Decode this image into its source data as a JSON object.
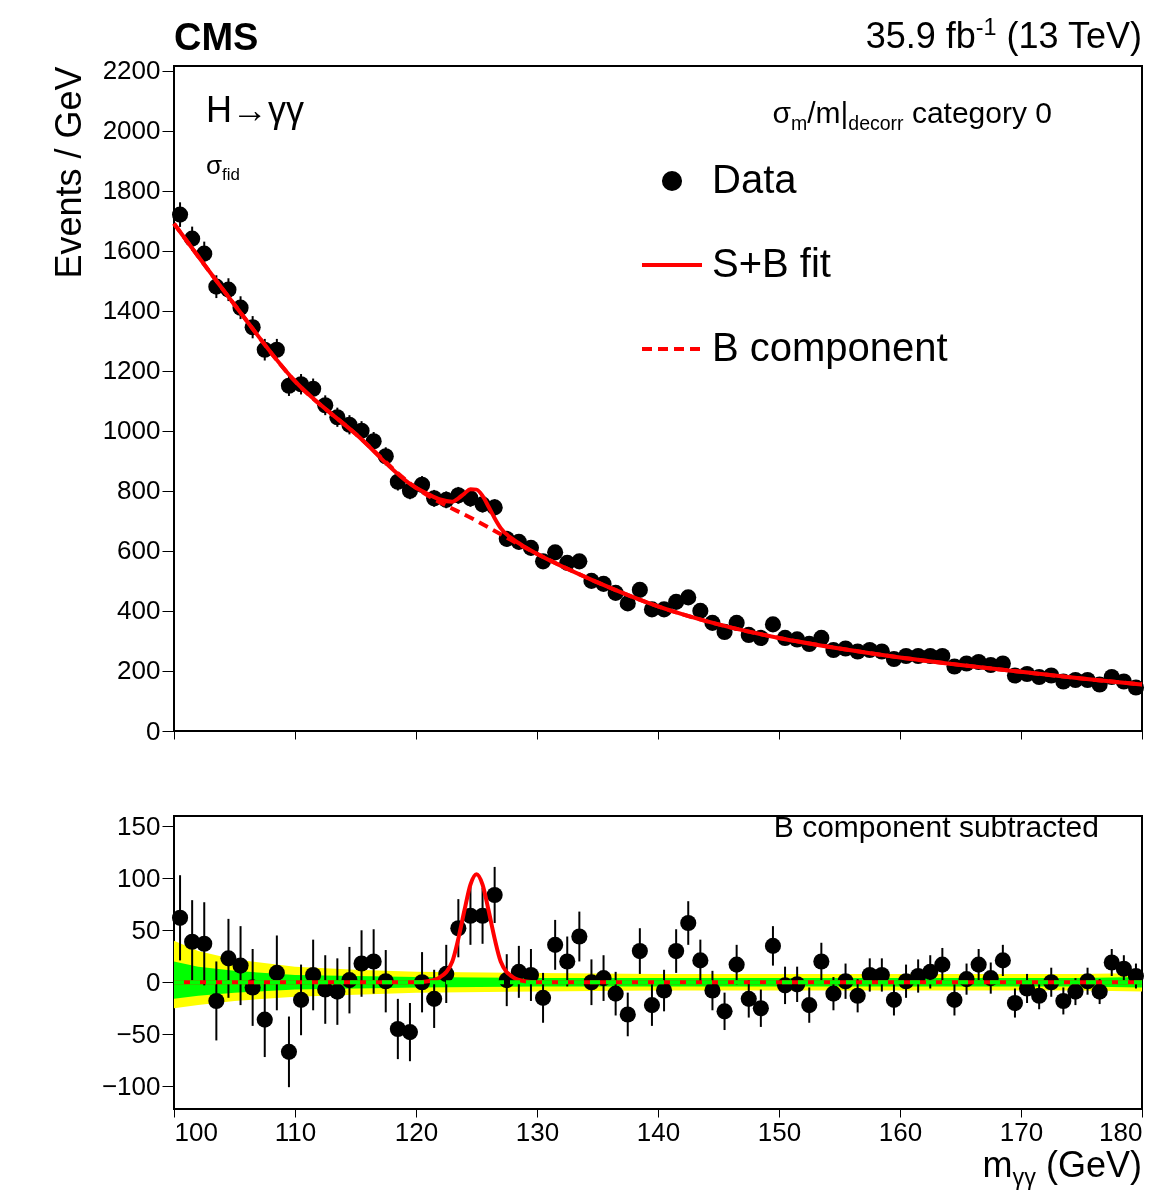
{
  "chart_data": [
    {
      "type": "scatter",
      "title": "CMS",
      "subtitle": "35.9 fb$^{-1}$ (13 TeV)",
      "ylabel": "Events / GeV",
      "annotations": [
        "H→γγ",
        "σ$_{fid}$",
        "σ$_{m}$/m|$_{decorr}$ category 0"
      ],
      "xlim": [
        100,
        180
      ],
      "xticks": [
        100,
        110,
        120,
        130,
        140,
        150,
        160,
        170,
        180
      ],
      "ylim": [
        0,
        2215
      ],
      "yticks": [
        0,
        200,
        400,
        600,
        800,
        1000,
        1200,
        1400,
        1600,
        1800,
        2000,
        2200
      ],
      "tick_labels": "y",
      "legend": "top right",
      "x": [
        100.5,
        101.5,
        102.5,
        103.5,
        104.5,
        105.5,
        106.5,
        107.5,
        108.5,
        109.5,
        110.5,
        111.5,
        112.5,
        113.5,
        114.5,
        115.5,
        116.5,
        117.5,
        118.5,
        119.5,
        120.5,
        121.5,
        122.5,
        123.5,
        124.5,
        125.5,
        126.5,
        127.5,
        128.5,
        129.5,
        130.5,
        131.5,
        132.5,
        133.5,
        134.5,
        135.5,
        136.5,
        137.5,
        138.5,
        139.5,
        140.5,
        141.5,
        142.5,
        143.5,
        144.5,
        145.5,
        146.5,
        147.5,
        148.5,
        149.5,
        150.5,
        151.5,
        152.5,
        153.5,
        154.5,
        155.5,
        156.5,
        157.5,
        158.5,
        159.5,
        160.5,
        161.5,
        162.5,
        163.5,
        164.5,
        165.5,
        166.5,
        167.5,
        168.5,
        169.5,
        170.5,
        171.5,
        172.5,
        173.5,
        174.5,
        175.5,
        176.5,
        177.5,
        178.5,
        179.5
      ],
      "series": [
        {
          "name": "Data",
          "type": "scatter",
          "marker": "circle",
          "color": "#000000",
          "values": [
            1720,
            1640,
            1590,
            1480,
            1470,
            1410,
            1345,
            1270,
            1270,
            1150,
            1155,
            1140,
            1085,
            1045,
            1020,
            1000,
            965,
            915,
            830,
            800,
            820,
            775,
            770,
            785,
            775,
            755,
            745,
            640,
            630,
            610,
            565,
            595,
            560,
            565,
            500,
            490,
            460,
            425,
            470,
            405,
            405,
            430,
            445,
            400,
            360,
            330,
            360,
            320,
            310,
            355,
            310,
            305,
            290,
            310,
            270,
            275,
            265,
            270,
            265,
            240,
            250,
            250,
            250,
            250,
            215,
            225,
            230,
            220,
            225,
            185,
            190,
            180,
            185,
            165,
            170,
            170,
            155,
            180,
            165,
            145
          ],
          "errors": [
            41,
            40,
            40,
            38,
            38,
            38,
            37,
            36,
            36,
            34,
            34,
            34,
            33,
            32,
            32,
            32,
            31,
            30,
            29,
            28,
            29,
            28,
            28,
            28,
            28,
            27,
            27,
            25,
            25,
            25,
            24,
            24,
            24,
            24,
            22,
            22,
            21,
            21,
            22,
            20,
            20,
            21,
            21,
            20,
            19,
            18,
            19,
            18,
            18,
            19,
            18,
            17,
            17,
            18,
            16,
            17,
            16,
            16,
            16,
            15,
            16,
            16,
            16,
            16,
            15,
            15,
            15,
            15,
            15,
            14,
            14,
            13,
            14,
            13,
            13,
            13,
            12,
            13,
            13,
            12
          ]
        },
        {
          "name": "S+B fit",
          "type": "line",
          "color": "#ff0000",
          "x": [
            100,
            105,
            110,
            115,
            120,
            121,
            122,
            123,
            123.5,
            124,
            124.5,
            125,
            125.5,
            126,
            126.5,
            127,
            128,
            129,
            130,
            135,
            140,
            145,
            150,
            155,
            160,
            165,
            170,
            175,
            180
          ],
          "values": [
            1690,
            1420,
            1165,
            990,
            810,
            789,
            771,
            764,
            775,
            791,
            805,
            804,
            783,
            747,
            709,
            676,
            639,
            613,
            590,
            495,
            415,
            355,
            310,
            275,
            245,
            220,
            197,
            175,
            155
          ]
        },
        {
          "name": "B component",
          "type": "line",
          "color": "#ff0000",
          "line_style": "dashed",
          "x": [
            100,
            105,
            110,
            115,
            120,
            125,
            130,
            135,
            140,
            145,
            150,
            155,
            160,
            165,
            170,
            175,
            180
          ],
          "values": [
            1690,
            1420,
            1165,
            990,
            810,
            700,
            590,
            495,
            415,
            355,
            310,
            275,
            245,
            220,
            197,
            175,
            155
          ]
        }
      ]
    },
    {
      "type": "scatter",
      "xlabel": "m$_{γγ}$ (GeV)",
      "annotations": [
        "B component subtracted"
      ],
      "xlim": [
        100,
        180
      ],
      "xticks": [
        100,
        110,
        120,
        130,
        140,
        150,
        160,
        170,
        180
      ],
      "ylim": [
        -122,
        160
      ],
      "yticks": [
        {
          "value": -100,
          "label": "−100"
        },
        {
          "value": -50,
          "label": "−50"
        },
        0,
        50,
        100,
        150
      ],
      "x": [
        100.5,
        101.5,
        102.5,
        103.5,
        104.5,
        105.5,
        106.5,
        107.5,
        108.5,
        109.5,
        110.5,
        111.5,
        112.5,
        113.5,
        114.5,
        115.5,
        116.5,
        117.5,
        118.5,
        119.5,
        120.5,
        121.5,
        122.5,
        123.5,
        124.5,
        125.5,
        126.5,
        127.5,
        128.5,
        129.5,
        130.5,
        131.5,
        132.5,
        133.5,
        134.5,
        135.5,
        136.5,
        137.5,
        138.5,
        139.5,
        140.5,
        141.5,
        142.5,
        143.5,
        144.5,
        145.5,
        146.5,
        147.5,
        148.5,
        149.5,
        150.5,
        151.5,
        152.5,
        153.5,
        154.5,
        155.5,
        156.5,
        157.5,
        158.5,
        159.5,
        160.5,
        161.5,
        162.5,
        163.5,
        164.5,
        165.5,
        166.5,
        167.5,
        168.5,
        169.5,
        170.5,
        171.5,
        172.5,
        173.5,
        174.5,
        175.5,
        176.5,
        177.5,
        178.5,
        179.5
      ],
      "series": [
        {
          "type": "line",
          "color": "#ffff00",
          "x": [
            100,
            102,
            105,
            110,
            115,
            120,
            130,
            140,
            150,
            160,
            170,
            175,
            180
          ],
          "values": [
            null,
            null,
            null,
            null,
            null,
            null,
            null,
            null,
            null,
            null,
            null,
            null,
            null
          ],
          "lower": [
            -25,
            -22,
            -18,
            -14,
            -12,
            -10,
            -9,
            -8,
            -8,
            -8,
            -8,
            -8,
            -9
          ],
          "upper": [
            40,
            30,
            22,
            15,
            12,
            10,
            9,
            8,
            8,
            8,
            8,
            8,
            9
          ]
        },
        {
          "type": "line",
          "color": "#ff0000",
          "x": [
            100,
            120,
            121,
            122,
            123,
            123.5,
            124,
            124.5,
            125,
            125.5,
            126,
            126.5,
            127,
            128,
            129,
            130,
            180
          ],
          "values": [
            0,
            0,
            1,
            5,
            20,
            42,
            69,
            94,
            104,
            94,
            69,
            42,
            20,
            5,
            1,
            0,
            0
          ]
        },
        {
          "type": "line",
          "color": "#00ff00",
          "line_style": "dashed",
          "x": [
            100,
            102,
            105,
            110,
            115,
            120,
            130,
            140,
            150,
            160,
            170,
            175,
            180
          ],
          "values": [
            0,
            0,
            0,
            0,
            0,
            0,
            0,
            0,
            0,
            0,
            0,
            0,
            0
          ],
          "lower": [
            -16,
            -13,
            -10,
            -7,
            -6,
            -5,
            -4,
            -4,
            -4,
            -4,
            -4,
            -4,
            -5
          ],
          "upper": [
            20,
            15,
            11,
            7,
            6,
            5,
            4,
            4,
            4,
            4,
            4,
            4,
            5
          ]
        },
        {
          "type": "scatter",
          "marker": "circle",
          "color": "#000000",
          "values": [
            62,
            39,
            37,
            -18,
            23,
            16,
            -5,
            -36,
            9,
            -67,
            -17,
            7,
            -7,
            -9,
            2,
            18,
            20,
            1,
            -45,
            -48,
            0,
            -16,
            8,
            52,
            64,
            64,
            84,
            2,
            10,
            7,
            -15,
            36,
            20,
            44,
            0,
            4,
            -11,
            -31,
            30,
            -22,
            -8,
            30,
            57,
            21,
            -8,
            -28,
            17,
            -16,
            -25,
            35,
            -3,
            -2,
            -22,
            20,
            -11,
            1,
            -13,
            7,
            7,
            -17,
            1,
            6,
            10,
            17,
            -17,
            3,
            17,
            4,
            21,
            -20,
            -6,
            -13,
            0,
            -18,
            -9,
            1,
            -9,
            19,
            13,
            6
          ],
          "errors": [
            41,
            40,
            40,
            38,
            38,
            38,
            37,
            36,
            36,
            34,
            34,
            34,
            33,
            32,
            32,
            32,
            31,
            30,
            29,
            28,
            29,
            28,
            28,
            28,
            28,
            27,
            27,
            25,
            25,
            25,
            24,
            24,
            24,
            24,
            22,
            22,
            21,
            21,
            22,
            20,
            20,
            21,
            21,
            20,
            19,
            18,
            19,
            18,
            18,
            19,
            18,
            17,
            17,
            18,
            16,
            17,
            16,
            16,
            16,
            15,
            16,
            16,
            16,
            16,
            15,
            15,
            15,
            15,
            15,
            14,
            14,
            13,
            14,
            13,
            13,
            13,
            12,
            13,
            13,
            12
          ]
        }
      ]
    }
  ]
}
